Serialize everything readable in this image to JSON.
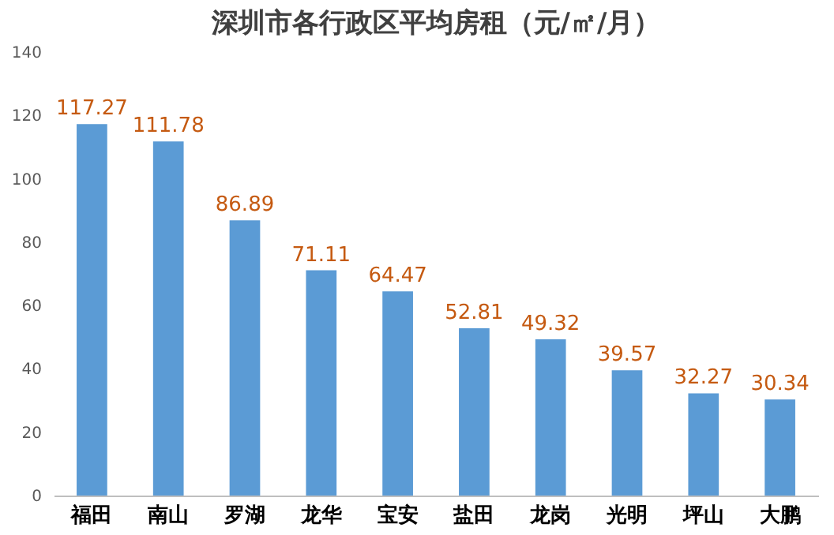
{
  "chart_data": {
    "type": "bar",
    "title": "深圳市各行政区平均房租（元/㎡/月）",
    "categories": [
      "福田",
      "南山",
      "罗湖",
      "龙华",
      "宝安",
      "盐田",
      "龙岗",
      "光明",
      "坪山",
      "大鹏"
    ],
    "values": [
      117.27,
      111.78,
      86.89,
      71.11,
      64.47,
      52.81,
      49.32,
      39.57,
      32.27,
      30.34
    ],
    "color": "#5b9bd5",
    "ylim": [
      0,
      140
    ],
    "yticks": [
      0,
      20,
      40,
      60,
      80,
      100,
      120,
      140
    ],
    "grid": false,
    "data_labels": true
  }
}
